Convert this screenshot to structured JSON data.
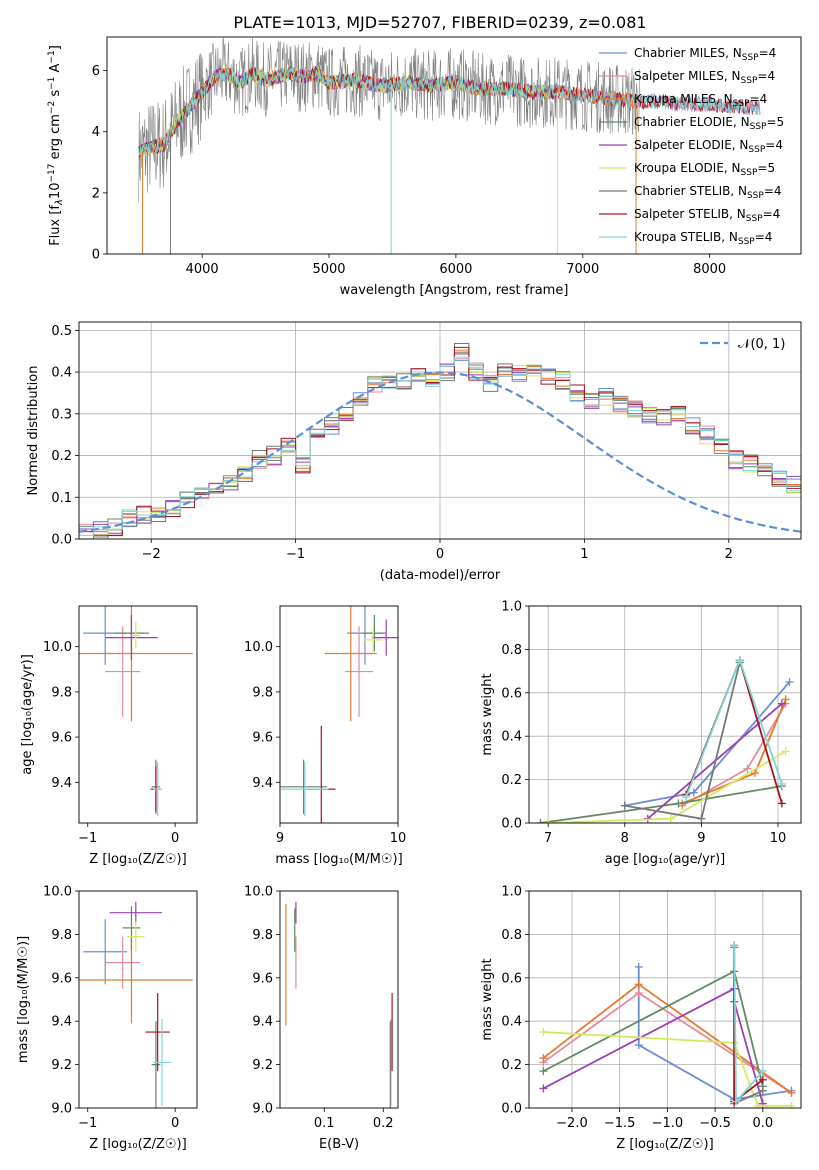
{
  "figure_title": "PLATE=1013, MJD=52707, FIBERID=0239, z=0.081",
  "colors": {
    "chabrier_miles": "#6a8ed8",
    "salpeter_miles": "#e58a9e",
    "kroupa_miles": "#e57a2e",
    "chabrier_elodie": "#5f8a63",
    "salpeter_elodie": "#9b3fb5",
    "kroupa_elodie": "#d4e860",
    "chabrier_stelib": "#777777",
    "salpeter_stelib": "#a3151e",
    "kroupa_stelib": "#7fd6d6",
    "gaussian": "#5b8fd9"
  },
  "chart_data": [
    {
      "id": "spectrum",
      "type": "line",
      "xlabel": "wavelength [Angstrom, rest frame]",
      "xlim": [
        3250,
        8720
      ],
      "ylim": [
        0,
        7.1
      ],
      "xticks": [
        4000,
        5000,
        6000,
        7000,
        8000
      ],
      "yticks": [
        0,
        2,
        4,
        6
      ],
      "legend_position": "upper-right",
      "legend": [
        {
          "label": "Chabrier MILES, N",
          "sub": "SSP",
          "suffix": "=4",
          "color_key": "chabrier_miles"
        },
        {
          "label": "Salpeter MILES, N",
          "sub": "SSP",
          "suffix": "=4",
          "color_key": "salpeter_miles"
        },
        {
          "label": "Kroupa MILES, N",
          "sub": "SSP",
          "suffix": "=4",
          "color_key": "kroupa_miles"
        },
        {
          "label": "Chabrier ELODIE, N",
          "sub": "SSP",
          "suffix": "=5",
          "color_key": "chabrier_elodie"
        },
        {
          "label": "Salpeter ELODIE, N",
          "sub": "SSP",
          "suffix": "=4",
          "color_key": "salpeter_elodie"
        },
        {
          "label": "Kroupa ELODIE, N",
          "sub": "SSP",
          "suffix": "=5",
          "color_key": "kroupa_elodie"
        },
        {
          "label": "Chabrier STELIB, N",
          "sub": "SSP",
          "suffix": "=4",
          "color_key": "chabrier_stelib"
        },
        {
          "label": "Salpeter STELIB, N",
          "sub": "SSP",
          "suffix": "=4",
          "color_key": "salpeter_stelib"
        },
        {
          "label": "Kroupa STELIB, N",
          "sub": "SSP",
          "suffix": "=4",
          "color_key": "kroupa_stelib"
        }
      ],
      "continuum": {
        "x": [
          3500,
          3600,
          3700,
          3800,
          3900,
          4000,
          4100,
          4200,
          4300,
          4400,
          4500,
          4600,
          4700,
          4800,
          4900,
          5000,
          5200,
          5400,
          5600,
          5800,
          6000,
          6200,
          6400,
          6600,
          6800,
          7000,
          7200,
          7400,
          7600,
          7800,
          8000,
          8200,
          8400
        ],
        "y": [
          3.3,
          3.5,
          3.6,
          4.3,
          4.8,
          5.3,
          5.8,
          5.9,
          5.6,
          5.9,
          5.7,
          5.8,
          5.9,
          5.8,
          5.9,
          5.6,
          5.7,
          5.5,
          5.6,
          5.5,
          5.6,
          5.4,
          5.4,
          5.3,
          5.3,
          5.2,
          5.1,
          5.0,
          5.0,
          4.9,
          4.9,
          4.8,
          4.8
        ]
      }
    },
    {
      "id": "residuals",
      "type": "step",
      "xlabel": "(data-model)/error",
      "ylabel": "Normed distribution",
      "xlim": [
        -2.5,
        2.5
      ],
      "ylim": [
        0,
        0.52
      ],
      "xticks": [
        -2,
        -1,
        0,
        1,
        2
      ],
      "yticks": [
        0.0,
        0.1,
        0.2,
        0.3,
        0.4,
        0.5
      ],
      "grid": true,
      "legend_position": "upper-right",
      "legend_label": "𝒩(0, 1)",
      "bin_edges_start": -2.5,
      "bin_width": 0.1,
      "counts": [
        0.015,
        0.02,
        0.03,
        0.05,
        0.06,
        0.06,
        0.07,
        0.09,
        0.1,
        0.12,
        0.14,
        0.16,
        0.19,
        0.2,
        0.22,
        0.18,
        0.25,
        0.27,
        0.3,
        0.34,
        0.37,
        0.38,
        0.38,
        0.39,
        0.38,
        0.4,
        0.45,
        0.4,
        0.37,
        0.4,
        0.4,
        0.41,
        0.39,
        0.38,
        0.35,
        0.33,
        0.34,
        0.32,
        0.31,
        0.3,
        0.29,
        0.3,
        0.27,
        0.25,
        0.22,
        0.19,
        0.18,
        0.17,
        0.14,
        0.13,
        0.13,
        0.11,
        0.09,
        0.08,
        0.06,
        0.05,
        0.05,
        0.04,
        0.03,
        0.03
      ],
      "gaussian": {
        "mu": 0,
        "sigma": 1
      }
    },
    {
      "id": "age_vs_Z",
      "type": "errorbar",
      "xlabel": "Z [log₁₀(Z/Z☉)]",
      "ylabel": "age  [log₁₀(age/yr)]",
      "xlim": [
        -1.1,
        0.25
      ],
      "ylim": [
        9.22,
        10.18
      ],
      "xticks": [
        -1,
        0
      ],
      "yticks": [
        9.4,
        9.6,
        9.8,
        10.0
      ],
      "points": [
        {
          "color_key": "chabrier_miles",
          "x": -0.8,
          "xe": 0.25,
          "y": 10.06,
          "ye": 0.14
        },
        {
          "color_key": "salpeter_miles",
          "x": -0.6,
          "xe": 0.2,
          "y": 9.89,
          "ye": 0.2
        },
        {
          "color_key": "kroupa_miles",
          "x": -0.5,
          "xe": 0.7,
          "y": 9.97,
          "ye": 0.3
        },
        {
          "color_key": "chabrier_elodie",
          "x": -0.5,
          "xe": 0.2,
          "y": 10.06,
          "ye": 0.08
        },
        {
          "color_key": "salpeter_elodie",
          "x": -0.5,
          "xe": 0.3,
          "y": 10.04,
          "ye": 0.1
        },
        {
          "color_key": "kroupa_elodie",
          "x": -0.45,
          "xe": 0.05,
          "y": 10.05,
          "ye": 0.06
        },
        {
          "color_key": "chabrier_stelib",
          "x": -0.22,
          "xe": 0.05,
          "y": 9.38,
          "ye": 0.12
        },
        {
          "color_key": "salpeter_stelib",
          "x": -0.22,
          "xe": 0.06,
          "y": 9.37,
          "ye": 0.1
        },
        {
          "color_key": "kroupa_stelib",
          "x": -0.2,
          "xe": 0.05,
          "y": 9.37,
          "ye": 0.12
        }
      ]
    },
    {
      "id": "age_vs_mass",
      "type": "errorbar",
      "xlabel": "mass [log₁₀(M/M☉)]",
      "xlim": [
        9.0,
        10.0
      ],
      "ylim": [
        9.22,
        10.18
      ],
      "xticks": [
        9,
        10
      ],
      "yticks": [
        9.4,
        9.6,
        9.8,
        10.0
      ],
      "points": [
        {
          "color_key": "chabrier_miles",
          "x": 9.72,
          "xe": 0.15,
          "y": 10.06,
          "ye": 0.14
        },
        {
          "color_key": "salpeter_miles",
          "x": 9.67,
          "xe": 0.12,
          "y": 9.89,
          "ye": 0.2
        },
        {
          "color_key": "kroupa_miles",
          "x": 9.6,
          "xe": 0.22,
          "y": 9.97,
          "ye": 0.3
        },
        {
          "color_key": "chabrier_elodie",
          "x": 9.8,
          "xe": 0.1,
          "y": 10.06,
          "ye": 0.08
        },
        {
          "color_key": "salpeter_elodie",
          "x": 9.9,
          "xe": 0.12,
          "y": 10.04,
          "ye": 0.08
        },
        {
          "color_key": "kroupa_elodie",
          "x": 9.79,
          "xe": 0.08,
          "y": 10.03,
          "ye": 0.06
        },
        {
          "color_key": "chabrier_stelib",
          "x": 9.2,
          "xe": 0.2,
          "y": 9.38,
          "ye": 0.12
        },
        {
          "color_key": "salpeter_stelib",
          "x": 9.35,
          "xe": 0.12,
          "y": 9.37,
          "ye": 0.28
        },
        {
          "color_key": "kroupa_stelib",
          "x": 9.21,
          "xe": 0.2,
          "y": 9.37,
          "ye": 0.12
        }
      ]
    },
    {
      "id": "massweight_vs_age",
      "type": "line",
      "xlabel": "age  [log₁₀(age/yr)]",
      "ylabel": "mass weight",
      "xlim": [
        6.75,
        10.3
      ],
      "ylim": [
        0,
        1.0
      ],
      "xticks": [
        7,
        8,
        9,
        10
      ],
      "yticks": [
        0.0,
        0.2,
        0.4,
        0.6,
        0.8,
        1.0
      ],
      "grid": true,
      "series": [
        {
          "color_key": "chabrier_miles",
          "x": [
            8.0,
            8.9,
            10.15
          ],
          "y": [
            0.08,
            0.14,
            0.65
          ]
        },
        {
          "color_key": "salpeter_miles",
          "x": [
            8.75,
            9.6,
            10.1
          ],
          "y": [
            0.08,
            0.25,
            0.55
          ]
        },
        {
          "color_key": "kroupa_miles",
          "x": [
            8.75,
            9.7,
            10.1
          ],
          "y": [
            0.09,
            0.23,
            0.57
          ]
        },
        {
          "color_key": "chabrier_elodie",
          "x": [
            6.9,
            8.7,
            10.05
          ],
          "y": [
            0.0,
            0.09,
            0.17
          ]
        },
        {
          "color_key": "salpeter_elodie",
          "x": [
            8.3,
            10.05
          ],
          "y": [
            0.02,
            0.55
          ]
        },
        {
          "color_key": "kroupa_elodie",
          "x": [
            7.0,
            8.6,
            10.1
          ],
          "y": [
            0.0,
            0.02,
            0.33
          ]
        },
        {
          "color_key": "chabrier_stelib",
          "x": [
            8.0,
            9.0,
            9.5
          ],
          "y": [
            0.08,
            0.02,
            0.74
          ]
        },
        {
          "color_key": "salpeter_stelib",
          "x": [
            8.8,
            9.5,
            10.05
          ],
          "y": [
            0.13,
            0.75,
            0.09
          ]
        },
        {
          "color_key": "kroupa_stelib",
          "x": [
            8.8,
            9.5,
            10.05
          ],
          "y": [
            0.12,
            0.75,
            0.18
          ]
        }
      ]
    },
    {
      "id": "mass_vs_Z",
      "type": "errorbar",
      "xlabel": "Z [log₁₀(Z/Z☉)]",
      "ylabel": "mass [log₁₀(M/M☉)]",
      "xlim": [
        -1.1,
        0.25
      ],
      "ylim": [
        9.0,
        10.0
      ],
      "xticks": [
        -1,
        0
      ],
      "yticks": [
        9.0,
        9.2,
        9.4,
        9.6,
        9.8,
        10.0
      ],
      "points": [
        {
          "color_key": "chabrier_miles",
          "x": -0.8,
          "xe": 0.25,
          "y": 9.72,
          "ye": 0.15
        },
        {
          "color_key": "salpeter_miles",
          "x": -0.6,
          "xe": 0.2,
          "y": 9.67,
          "ye": 0.12
        },
        {
          "color_key": "kroupa_miles",
          "x": -0.5,
          "xe": 0.7,
          "y": 9.59,
          "ye": 0.2
        },
        {
          "color_key": "chabrier_elodie",
          "x": -0.5,
          "xe": 0.1,
          "y": 9.83,
          "ye": 0.1
        },
        {
          "color_key": "salpeter_elodie",
          "x": -0.45,
          "xe": 0.3,
          "y": 9.9,
          "ye": 0.05
        },
        {
          "color_key": "kroupa_elodie",
          "x": -0.45,
          "xe": 0.1,
          "y": 9.79,
          "ye": 0.07
        },
        {
          "color_key": "chabrier_stelib",
          "x": -0.22,
          "xe": 0.05,
          "y": 9.2,
          "ye": 0.2
        },
        {
          "color_key": "salpeter_stelib",
          "x": -0.2,
          "xe": 0.14,
          "y": 9.35,
          "ye": 0.18
        },
        {
          "color_key": "kroupa_stelib",
          "x": -0.15,
          "xe": 0.1,
          "y": 9.21,
          "ye": 0.2
        }
      ]
    },
    {
      "id": "mass_vs_ebv",
      "type": "errorbar",
      "xlabel": "E(B-V)",
      "xlim": [
        0.025,
        0.225
      ],
      "ylim": [
        9.0,
        10.0
      ],
      "xticks": [
        0.1,
        0.2
      ],
      "yticks": [
        9.0,
        9.2,
        9.4,
        9.6,
        9.8,
        10.0
      ],
      "points": [
        {
          "color_key": "kroupa_miles",
          "x": 0.035,
          "xe": 0,
          "y": 9.66,
          "ye": 0.28
        },
        {
          "color_key": "salpeter_miles",
          "x": 0.052,
          "xe": 0,
          "y": 9.67,
          "ye": 0.12
        },
        {
          "color_key": "salpeter_elodie",
          "x": 0.052,
          "xe": 0,
          "y": 9.9,
          "ye": 0.05
        },
        {
          "color_key": "chabrier_elodie",
          "x": 0.05,
          "xe": 0,
          "y": 9.82,
          "ye": 0.1
        },
        {
          "color_key": "salpeter_stelib",
          "x": 0.215,
          "xe": 0,
          "y": 9.35,
          "ye": 0.18
        },
        {
          "color_key": "kroupa_stelib",
          "x": 0.213,
          "xe": 0,
          "y": 9.21,
          "ye": 0.2
        },
        {
          "color_key": "chabrier_stelib",
          "x": 0.212,
          "xe": 0,
          "y": 9.2,
          "ye": 0.2
        }
      ]
    },
    {
      "id": "massweight_vs_Z",
      "type": "line",
      "xlabel": "Z [log₁₀(Z/Z☉)]",
      "ylabel": "mass weight",
      "xlim": [
        -2.45,
        0.4
      ],
      "ylim": [
        0,
        1.0
      ],
      "xticks": [
        -2.0,
        -1.5,
        -1.0,
        -0.5,
        0.0
      ],
      "yticks": [
        0.0,
        0.2,
        0.4,
        0.6,
        0.8,
        1.0
      ],
      "grid": true,
      "series": [
        {
          "color_key": "chabrier_miles",
          "x": [
            -1.3,
            -1.3,
            -0.3,
            0.3
          ],
          "y": [
            0.65,
            0.29,
            0.04,
            0.08
          ]
        },
        {
          "color_key": "salpeter_miles",
          "x": [
            -2.3,
            -1.3,
            0.3
          ],
          "y": [
            0.21,
            0.53,
            0.07
          ]
        },
        {
          "color_key": "kroupa_miles",
          "x": [
            -2.3,
            -1.3,
            0.3
          ],
          "y": [
            0.23,
            0.57,
            0.07
          ]
        },
        {
          "color_key": "chabrier_elodie",
          "x": [
            -2.3,
            -0.3,
            0.0
          ],
          "y": [
            0.17,
            0.63,
            0.1
          ]
        },
        {
          "color_key": "salpeter_elodie",
          "x": [
            -2.3,
            -0.3,
            -0.3,
            0.0
          ],
          "y": [
            0.09,
            0.55,
            0.49,
            0.02
          ]
        },
        {
          "color_key": "kroupa_elodie",
          "x": [
            -2.3,
            -0.3,
            -0.05,
            0.3
          ],
          "y": [
            0.35,
            0.3,
            0.01,
            0.01
          ]
        },
        {
          "color_key": "chabrier_stelib",
          "x": [
            -0.3,
            -0.3,
            0.0
          ],
          "y": [
            0.74,
            0.02,
            0.08
          ]
        },
        {
          "color_key": "salpeter_stelib",
          "x": [
            -0.3,
            -0.3,
            0.0
          ],
          "y": [
            0.75,
            0.03,
            0.13
          ]
        },
        {
          "color_key": "kroupa_stelib",
          "x": [
            -0.3,
            -0.28,
            0.0
          ],
          "y": [
            0.75,
            0.03,
            0.17
          ]
        }
      ]
    }
  ]
}
